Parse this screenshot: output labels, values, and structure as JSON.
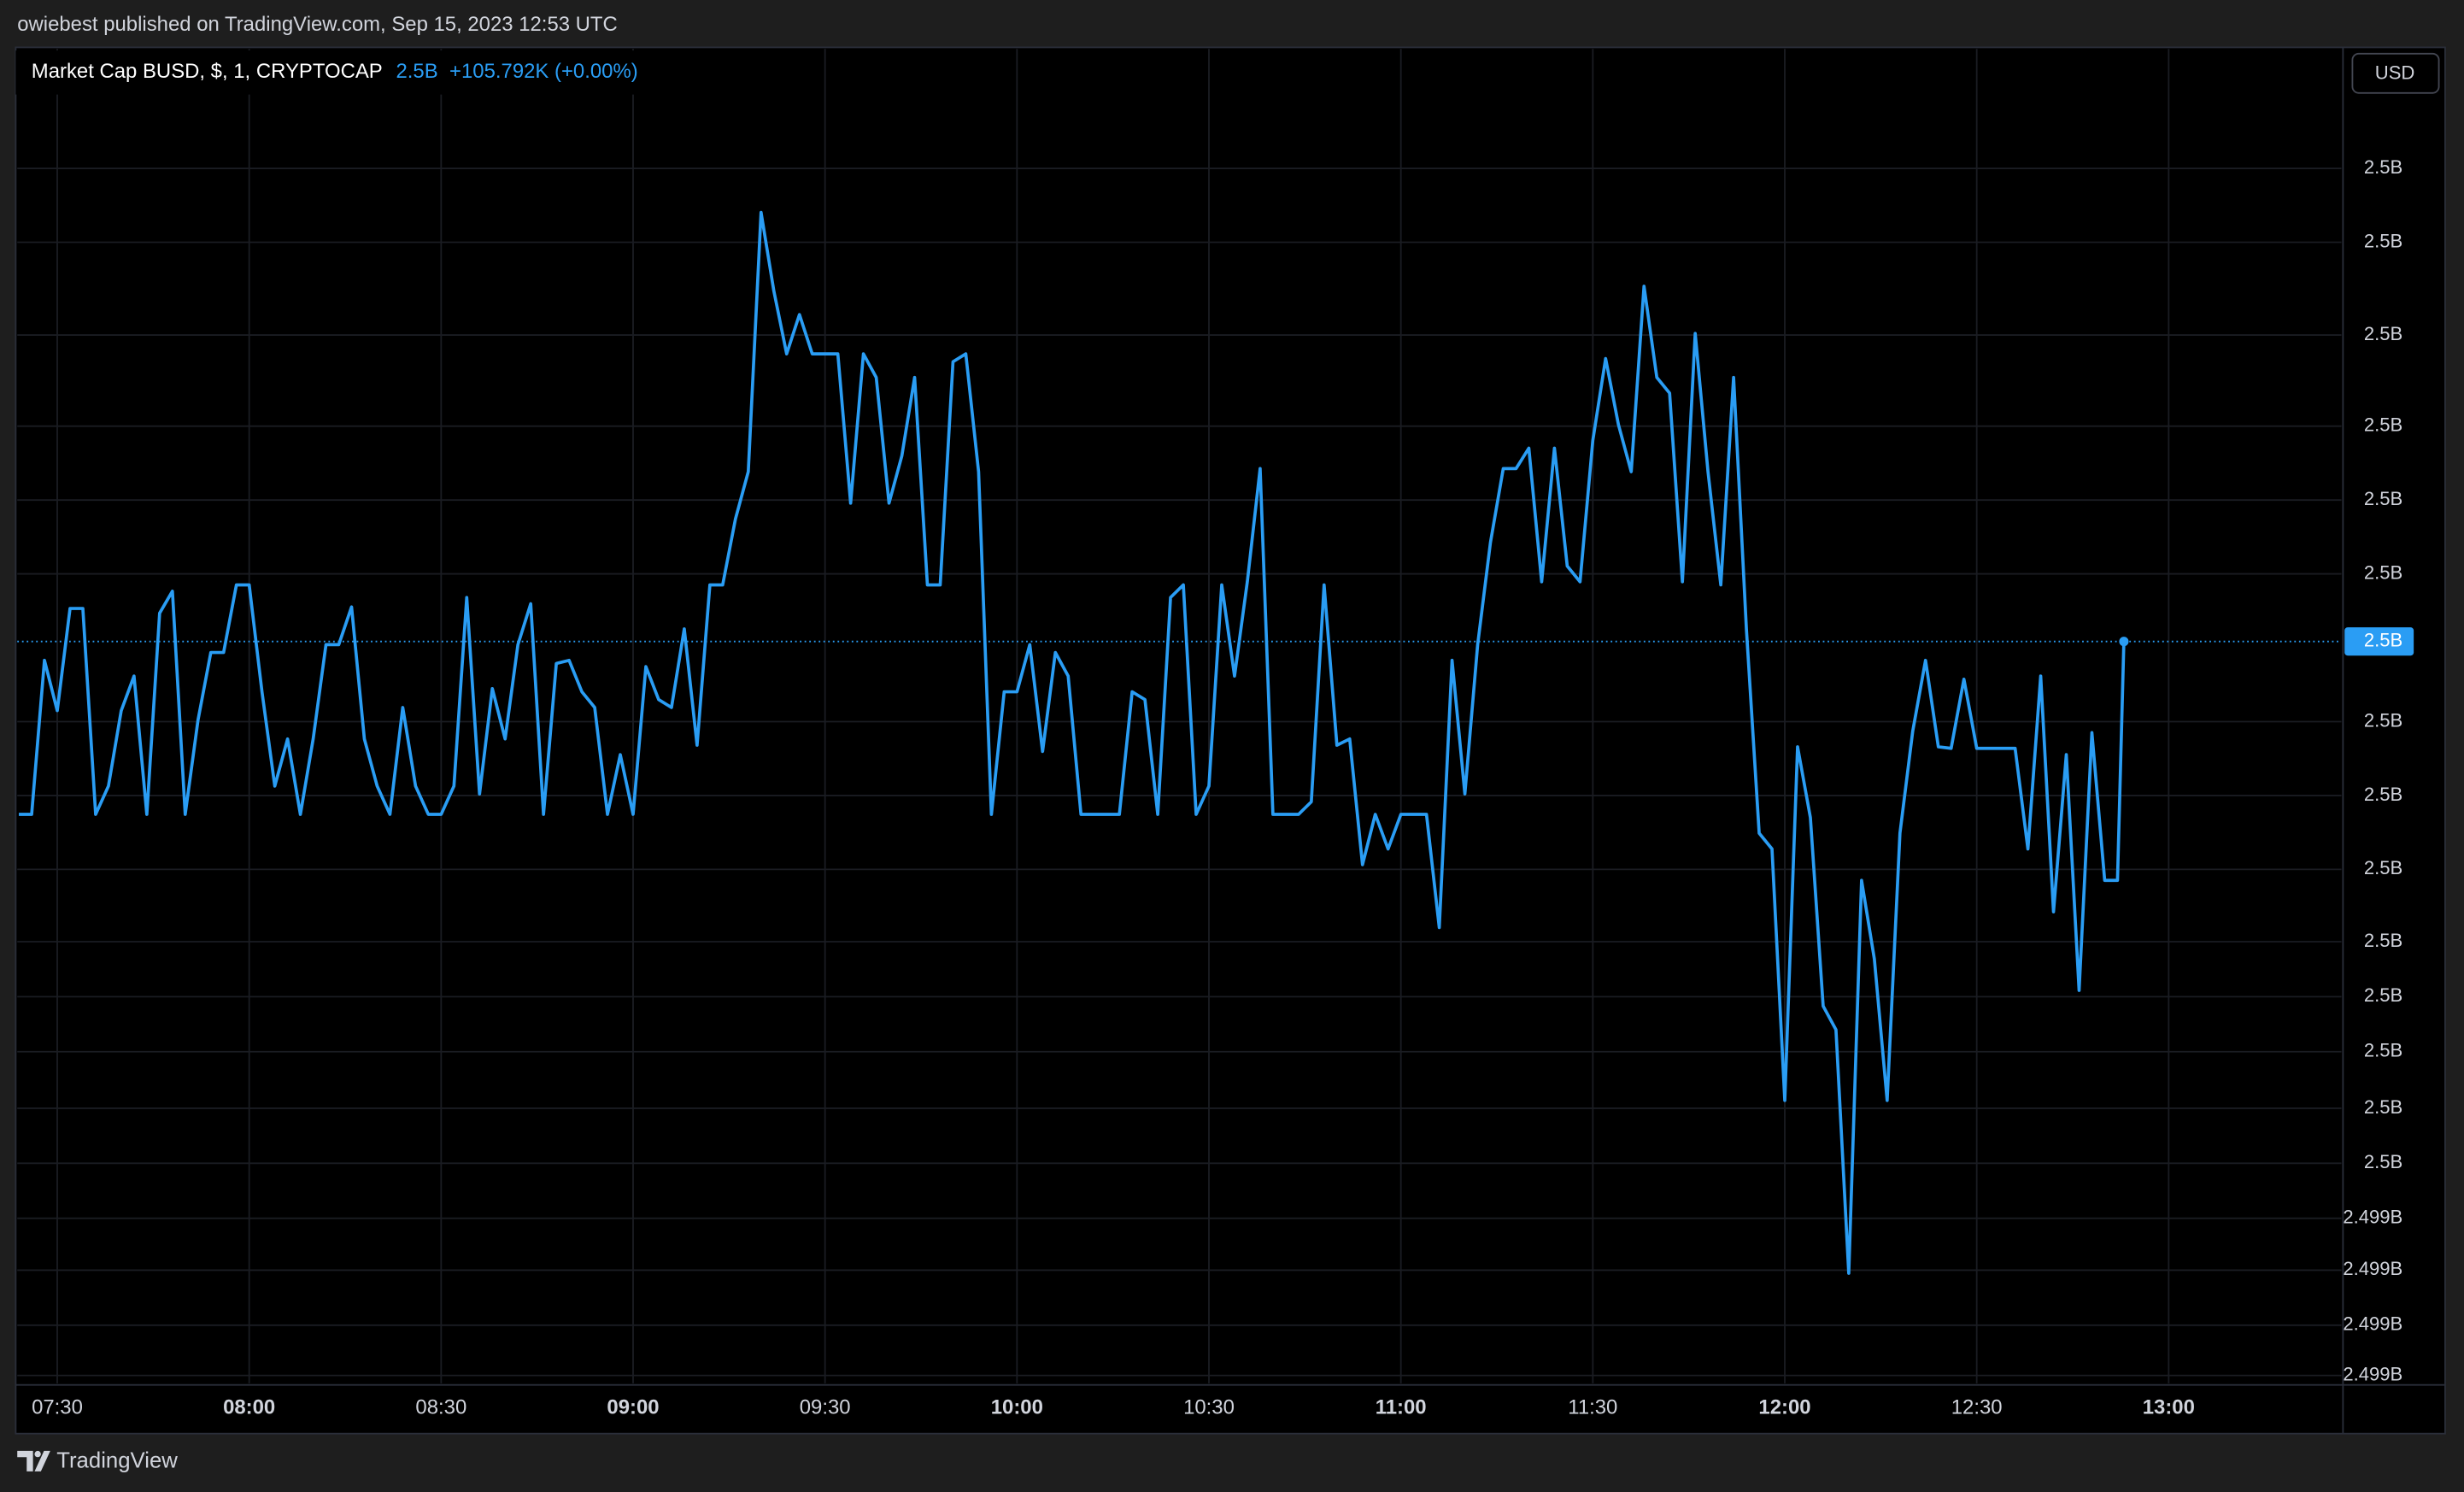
{
  "chart_data": {
    "type": "line",
    "publisher": "owiebest published on TradingView.com, Sep 15, 2023 12:53 UTC",
    "title": "Market Cap BUSD, $, 1, CRYPTOCAP",
    "last_value_label": "2.5B",
    "change_label": "+105.792K (+0.00%)",
    "currency": "USD",
    "brand": "TradingView",
    "color": "#2a9df4",
    "grid": true,
    "x": [
      "07:24",
      "07:26",
      "07:28",
      "07:30",
      "07:32",
      "07:34",
      "07:36",
      "07:38",
      "07:40",
      "07:42",
      "07:44",
      "07:46",
      "07:48",
      "07:50",
      "07:52",
      "07:54",
      "07:56",
      "07:58",
      "08:00",
      "08:02",
      "08:04",
      "08:06",
      "08:08",
      "08:10",
      "08:12",
      "08:14",
      "08:16",
      "08:18",
      "08:20",
      "08:22",
      "08:24",
      "08:26",
      "08:28",
      "08:30",
      "08:32",
      "08:34",
      "08:36",
      "08:38",
      "08:40",
      "08:42",
      "08:44",
      "08:46",
      "08:48",
      "08:50",
      "08:52",
      "08:54",
      "08:56",
      "08:58",
      "09:00",
      "09:02",
      "09:04",
      "09:06",
      "09:08",
      "09:10",
      "09:12",
      "09:14",
      "09:16",
      "09:18",
      "09:20",
      "09:22",
      "09:24",
      "09:26",
      "09:28",
      "09:30",
      "09:32",
      "09:34",
      "09:36",
      "09:38",
      "09:40",
      "09:42",
      "09:44",
      "09:46",
      "09:48",
      "09:50",
      "09:52",
      "09:54",
      "09:56",
      "09:58",
      "10:00",
      "10:02",
      "10:04",
      "10:06",
      "10:08",
      "10:10",
      "10:12",
      "10:14",
      "10:16",
      "10:18",
      "10:20",
      "10:22",
      "10:24",
      "10:26",
      "10:28",
      "10:30",
      "10:32",
      "10:34",
      "10:36",
      "10:38",
      "10:40",
      "10:42",
      "10:44",
      "10:46",
      "10:48",
      "10:50",
      "10:52",
      "10:54",
      "10:56",
      "10:58",
      "11:00",
      "11:02",
      "11:04",
      "11:06",
      "11:08",
      "11:10",
      "11:12",
      "11:14",
      "11:16",
      "11:18",
      "11:20",
      "11:22",
      "11:24",
      "11:26",
      "11:28",
      "11:30",
      "11:32",
      "11:34",
      "11:36",
      "11:38",
      "11:40",
      "11:42",
      "11:44",
      "11:46",
      "11:48",
      "11:50",
      "11:52",
      "11:54",
      "11:56",
      "11:58",
      "12:00",
      "12:02",
      "12:04",
      "12:06",
      "12:08",
      "12:10",
      "12:12",
      "12:14",
      "12:16",
      "12:18",
      "12:20",
      "12:22",
      "12:24",
      "12:26",
      "12:28",
      "12:30",
      "12:32",
      "12:34",
      "12:36",
      "12:38",
      "12:40",
      "12:42",
      "12:44",
      "12:46",
      "12:48",
      "12:50",
      "12:52",
      "12:53"
    ],
    "values": [
      2499739000,
      2499739000,
      2499837000,
      2499805000,
      2499870000,
      2499870000,
      2499739000,
      2499757000,
      2499805000,
      2499827000,
      2499739000,
      2499867000,
      2499881000,
      2499739000,
      2499799000,
      2499842000,
      2499842000,
      2499885000,
      2499885000,
      2499817000,
      2499757000,
      2499787000,
      2499739000,
      2499787000,
      2499847000,
      2499847000,
      2499871000,
      2499787000,
      2499757000,
      2499739000,
      2499807000,
      2499757000,
      2499739000,
      2499739000,
      2499757000,
      2499877000,
      2499752000,
      2499819000,
      2499787000,
      2499847000,
      2499873000,
      2499739000,
      2499835000,
      2499837000,
      2499817000,
      2499807000,
      2499739000,
      2499777000,
      2499739000,
      2499833000,
      2499812000,
      2499807000,
      2499857000,
      2499783000,
      2499885000,
      2499885000,
      2499927000,
      2499957000,
      2500122000,
      2500072000,
      2500032000,
      2500057000,
      2500032000,
      2500032000,
      2500032000,
      2499937000,
      2500032000,
      2500017000,
      2499937000,
      2499967000,
      2500017000,
      2499885000,
      2499885000,
      2500027000,
      2500032000,
      2499957000,
      2499739000,
      2499817000,
      2499817000,
      2499847000,
      2499779000,
      2499842000,
      2499827000,
      2499739000,
      2499739000,
      2499739000,
      2499739000,
      2499817000,
      2499812000,
      2499739000,
      2499877000,
      2499885000,
      2499739000,
      2499757000,
      2499885000,
      2499827000,
      2499887000,
      2499959000,
      2499739000,
      2499739000,
      2499739000,
      2499747000,
      2499885000,
      2499783000,
      2499787000,
      2499707000,
      2499739000,
      2499717000,
      2499739000,
      2499739000,
      2499739000,
      2499667000,
      2499837000,
      2499752000,
      2499847000,
      2499912000,
      2499959000,
      2499959000,
      2499972000,
      2499887000,
      2499972000,
      2499897000,
      2499887000,
      2499977000,
      2500029000,
      2499987000,
      2499957000,
      2500075000,
      2500017000,
      2500007000,
      2499887000,
      2500045000,
      2499957000,
      2499885000,
      2500017000,
      2499857000,
      2499727000,
      2499717000,
      2499557000,
      2499782000,
      2499737000,
      2499617000,
      2499602000,
      2499447000,
      2499697000,
      2499647000,
      2499557000,
      2499727000,
      2499792000,
      2499837000,
      2499782000,
      2499781000,
      2499825000,
      2499781000,
      2499781000,
      2499781000,
      2499781000,
      2499717000,
      2499827000,
      2499677000,
      2499777000,
      2499627000,
      2499791000,
      2499697000,
      2499697000,
      2499849000
    ],
    "xlim": [
      "07:24",
      "13:27"
    ],
    "xticks": [
      "07:30",
      "08:00",
      "08:30",
      "09:00",
      "09:30",
      "10:00",
      "10:30",
      "11:00",
      "11:30",
      "12:00",
      "12:30",
      "13:00"
    ],
    "ylim": [
      2499377000,
      2500227000
    ],
    "yticks": [
      {
        "value": 2500150000,
        "label": "2.5B"
      },
      {
        "value": 2500103000,
        "label": "2.5B"
      },
      {
        "value": 2500044000,
        "label": "2.5B"
      },
      {
        "value": 2499986000,
        "label": "2.5B"
      },
      {
        "value": 2499939000,
        "label": "2.5B"
      },
      {
        "value": 2499892000,
        "label": "2.5B"
      },
      {
        "value": 2499798000,
        "label": "2.5B"
      },
      {
        "value": 2499751000,
        "label": "2.5B"
      },
      {
        "value": 2499704000,
        "label": "2.5B"
      },
      {
        "value": 2499658000,
        "label": "2.5B"
      },
      {
        "value": 2499623000,
        "label": "2.5B"
      },
      {
        "value": 2499588000,
        "label": "2.5B"
      },
      {
        "value": 2499552000,
        "label": "2.5B"
      },
      {
        "value": 2499517000,
        "label": "2.5B"
      },
      {
        "value": 2499482000,
        "label": "2.499B"
      },
      {
        "value": 2499449000,
        "label": "2.499B"
      },
      {
        "value": 2499414000,
        "label": "2.499B"
      },
      {
        "value": 2499382000,
        "label": "2.499B"
      }
    ]
  }
}
